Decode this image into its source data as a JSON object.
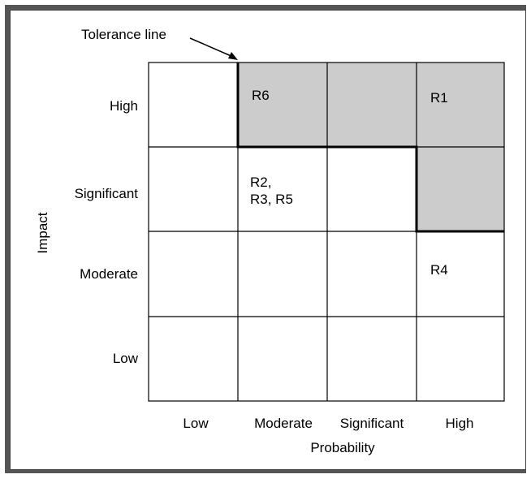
{
  "diagram": {
    "tolerance_label": "Tolerance line",
    "y_axis_title": "Impact",
    "x_axis_title": "Probability",
    "rows": [
      "High",
      "Significant",
      "Moderate",
      "Low"
    ],
    "cols": [
      "Low",
      "Moderate",
      "Significant",
      "High"
    ],
    "shaded_color": "#cccccc",
    "cells": {
      "high_moderate": "R6",
      "high_high": "R1",
      "significant_moderate": "R2,\nR3, R5",
      "moderate_high": "R4"
    }
  }
}
